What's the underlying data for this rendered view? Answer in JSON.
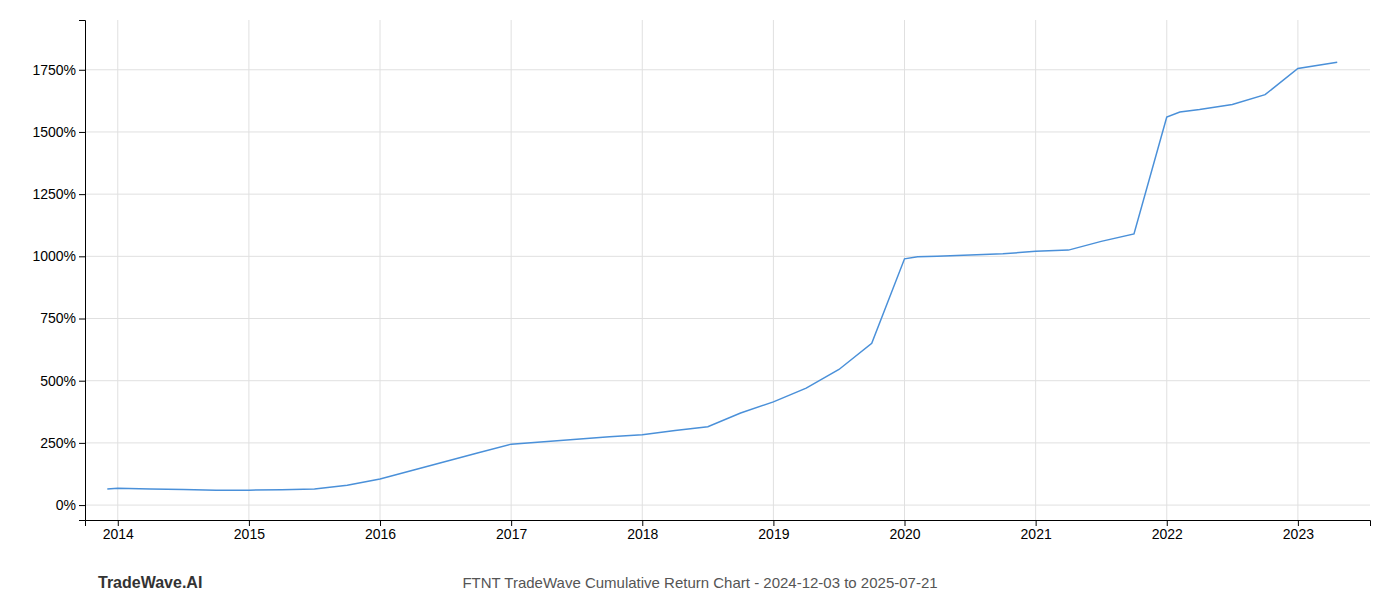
{
  "chart_data": {
    "type": "line",
    "title": "FTNT TradeWave Cumulative Return Chart - 2024-12-03 to 2025-07-21",
    "annotations": [
      "TradeWave.AI"
    ],
    "color": "#4a90d9",
    "x": [
      2013.92,
      2014.0,
      2014.25,
      2014.5,
      2014.75,
      2015.0,
      2015.25,
      2015.5,
      2015.75,
      2016.0,
      2016.25,
      2016.5,
      2016.75,
      2017.0,
      2017.25,
      2017.5,
      2017.75,
      2018.0,
      2018.25,
      2018.5,
      2018.75,
      2019.0,
      2019.25,
      2019.5,
      2019.75,
      2020.0,
      2020.1,
      2020.25,
      2020.5,
      2020.75,
      2021.0,
      2021.25,
      2021.5,
      2021.75,
      2022.0,
      2022.1,
      2022.25,
      2022.5,
      2022.75,
      2023.0,
      2023.3
    ],
    "values": [
      65,
      68,
      65,
      63,
      60,
      60,
      62,
      65,
      80,
      105,
      140,
      175,
      210,
      245,
      255,
      265,
      275,
      283,
      300,
      315,
      370,
      415,
      470,
      545,
      650,
      990,
      998,
      1000,
      1005,
      1010,
      1020,
      1025,
      1060,
      1090,
      1560,
      1580,
      1590,
      1610,
      1650,
      1755,
      1780
    ],
    "xlim": [
      2013.75,
      2023.55
    ],
    "xticks": [
      2014,
      2015,
      2016,
      2017,
      2018,
      2019,
      2020,
      2021,
      2022,
      2023
    ],
    "ylim": [
      -60,
      1950
    ],
    "yticks": [
      {
        "value": 0,
        "label": "0%"
      },
      {
        "value": 250,
        "label": "250%"
      },
      {
        "value": 500,
        "label": "500%"
      },
      {
        "value": 750,
        "label": "750%"
      },
      {
        "value": 1000,
        "label": "1000%"
      },
      {
        "value": 1250,
        "label": "1250%"
      },
      {
        "value": 1500,
        "label": "1500%"
      },
      {
        "value": 1750,
        "label": "1750%"
      }
    ],
    "grid": true
  }
}
